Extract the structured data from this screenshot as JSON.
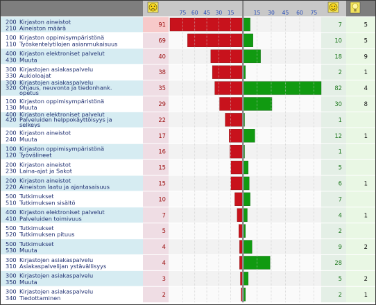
{
  "chart_data": {
    "type": "bar",
    "header": {
      "icons": [
        "sad-face-icon",
        "happy-face-icon",
        "importance-bulb-icon"
      ]
    },
    "negative_ticks": [
      "75",
      "60",
      "45",
      "30",
      "15"
    ],
    "positive_ticks": [
      "15",
      "30",
      "45",
      "60",
      "75"
    ],
    "xlim_negative": [
      0,
      75
    ],
    "xlim_positive": [
      0,
      75
    ],
    "rows": [
      {
        "code1": "200",
        "cat": "Kirjaston aineistot",
        "code2": "210",
        "sub": "Aineiston määrä",
        "neg": 91,
        "pos": 7,
        "imp": "5"
      },
      {
        "code1": "100",
        "cat": "Kirjaston oppimisympäristönä",
        "code2": "110",
        "sub": "Työskentelytilojen asianmukaisuus",
        "neg": 69,
        "pos": 10,
        "imp": "5"
      },
      {
        "code1": "400",
        "cat": "Kirjaston elektroniset palvelut",
        "code2": "430",
        "sub": "Muuta",
        "neg": 40,
        "pos": 18,
        "imp": "9"
      },
      {
        "code1": "300",
        "cat": "Kirjastojen asiakaspalvelu",
        "code2": "330",
        "sub": "Aukioloajat",
        "neg": 38,
        "pos": 2,
        "imp": "1"
      },
      {
        "code1": "300",
        "cat": "Kirjastojen asiakaspalvelu",
        "code2": "320",
        "sub": "Ohjaus, neuvonta ja tiedonhank. opetus",
        "neg": 35,
        "pos": 82,
        "imp": "4"
      },
      {
        "code1": "100",
        "cat": "Kirjaston oppimisympäristönä",
        "code2": "130",
        "sub": "Muuta",
        "neg": 29,
        "pos": 30,
        "imp": "8"
      },
      {
        "code1": "400",
        "cat": "Kirjaston elektroniset palvelut",
        "code2": "420",
        "sub": "Palveluiden helppokäyttöisyys ja selkeys",
        "neg": 22,
        "pos": 1,
        "imp": ""
      },
      {
        "code1": "200",
        "cat": "Kirjaston aineistot",
        "code2": "240",
        "sub": "Muuta",
        "neg": 17,
        "pos": 12,
        "imp": "1"
      },
      {
        "code1": "100",
        "cat": "Kirjaston oppimisympäristönä",
        "code2": "120",
        "sub": "Työvälineet",
        "neg": 16,
        "pos": 1,
        "imp": ""
      },
      {
        "code1": "200",
        "cat": "Kirjaston aineistot",
        "code2": "230",
        "sub": "Laina-ajat ja Sakot",
        "neg": 15,
        "pos": 5,
        "imp": ""
      },
      {
        "code1": "200",
        "cat": "Kirjaston aineistot",
        "code2": "220",
        "sub": "Aineiston laatu ja ajantasaisuus",
        "neg": 15,
        "pos": 6,
        "imp": "1"
      },
      {
        "code1": "500",
        "cat": "Tutkimukset",
        "code2": "510",
        "sub": "Tutkimuksen sisältö",
        "neg": 10,
        "pos": 7,
        "imp": ""
      },
      {
        "code1": "400",
        "cat": "Kirjaston elektroniset palvelut",
        "code2": "410",
        "sub": "Palveluiden toimivuus",
        "neg": 7,
        "pos": 4,
        "imp": "1"
      },
      {
        "code1": "500",
        "cat": "Tutkimukset",
        "code2": "520",
        "sub": "Tutkimuksen pituus",
        "neg": 5,
        "pos": 2,
        "imp": ""
      },
      {
        "code1": "500",
        "cat": "Tutkimukset",
        "code2": "530",
        "sub": "Muuta",
        "neg": 4,
        "pos": 9,
        "imp": "2"
      },
      {
        "code1": "300",
        "cat": "Kirjastojen asiakaspalvelu",
        "code2": "310",
        "sub": "Asiakaspalvelijan ystävällisyys",
        "neg": 4,
        "pos": 28,
        "imp": ""
      },
      {
        "code1": "300",
        "cat": "Kirjastojen asiakaspalvelu",
        "code2": "350",
        "sub": "Muuta",
        "neg": 3,
        "pos": 5,
        "imp": "2"
      },
      {
        "code1": "300",
        "cat": "Kirjastojen asiakaspalvelu",
        "code2": "340",
        "sub": "Tiedottaminen",
        "neg": 2,
        "pos": 2,
        "imp": "1"
      }
    ],
    "colors": {
      "negative_bar": "#c8121c",
      "positive_bar": "#119a11",
      "label_bg_alt": "#d6ecf2",
      "neg_cell_bg": "#efdde4",
      "neg_cell_hot": "#f7c9c9",
      "pos_cell_bg": "#e4efe6",
      "imp_cell_bg": "#e9f7e4",
      "header_bg": "#7e7e7e",
      "header_light": "#c8c8c8",
      "grid": "#c8c8c8",
      "axis": "#8e8e8e"
    },
    "grid": true,
    "legend": "none"
  }
}
